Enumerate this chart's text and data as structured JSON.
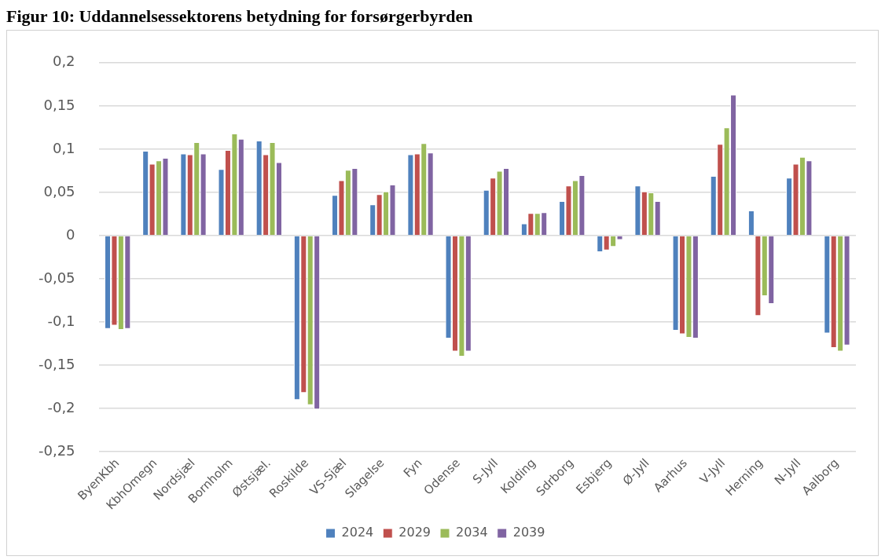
{
  "chart_data": {
    "type": "bar",
    "title": "Figur 10: Uddannelsessektorens betydning for forsørgerbyrden",
    "categories": [
      "ByenKbh",
      "KbhOmegn",
      "Nordsjæl",
      "Bornholm",
      "Østsjæl.",
      "Roskilde",
      "VS-Sjæl",
      "Slagelse",
      "Fyn",
      "Odense",
      "S-Jyll",
      "Kolding",
      "Sdrborg",
      "Esbjerg",
      "Ø-Jyll",
      "Aarhus",
      "V-Jyll",
      "Herning",
      "N-Jyll",
      "Aalborg"
    ],
    "series": [
      {
        "name": "2024",
        "color": "#4f81bd",
        "values": [
          -0.108,
          0.098,
          0.095,
          0.077,
          0.11,
          -0.19,
          0.047,
          0.036,
          0.094,
          -0.119,
          0.053,
          0.014,
          0.04,
          -0.019,
          0.058,
          -0.11,
          0.069,
          0.029,
          0.067,
          -0.113
        ]
      },
      {
        "name": "2029",
        "color": "#c0504d",
        "values": [
          -0.104,
          0.083,
          0.094,
          0.099,
          0.094,
          -0.182,
          0.064,
          0.048,
          0.095,
          -0.134,
          0.067,
          0.026,
          0.058,
          -0.017,
          0.051,
          -0.114,
          0.106,
          -0.093,
          0.083,
          -0.13
        ]
      },
      {
        "name": "2034",
        "color": "#9bbb59",
        "values": [
          -0.109,
          0.087,
          0.108,
          0.118,
          0.108,
          -0.196,
          0.076,
          0.051,
          0.107,
          -0.14,
          0.075,
          0.026,
          0.064,
          -0.013,
          0.05,
          -0.118,
          0.125,
          -0.07,
          0.091,
          -0.134
        ]
      },
      {
        "name": "2039",
        "color": "#8064a2",
        "values": [
          -0.108,
          0.09,
          0.095,
          0.112,
          0.085,
          -0.201,
          0.078,
          0.059,
          0.096,
          -0.134,
          0.078,
          0.027,
          0.07,
          -0.005,
          0.04,
          -0.119,
          0.163,
          -0.079,
          0.087,
          -0.127
        ]
      }
    ],
    "ylim": [
      -0.25,
      0.2
    ],
    "yticks": [
      {
        "value": 0.2,
        "label": "0,2"
      },
      {
        "value": 0.15,
        "label": "0,15"
      },
      {
        "value": 0.1,
        "label": "0,1"
      },
      {
        "value": 0.05,
        "label": "0,05"
      },
      0,
      {
        "value": -0.05,
        "label": "-0,05"
      },
      {
        "value": -0.1,
        "label": "-0,1"
      },
      {
        "value": -0.15,
        "label": "-0,15"
      },
      {
        "value": -0.2,
        "label": "-0,2"
      },
      {
        "value": -0.25,
        "label": "-0,25"
      }
    ],
    "grid": "y",
    "legend": "bottom"
  }
}
